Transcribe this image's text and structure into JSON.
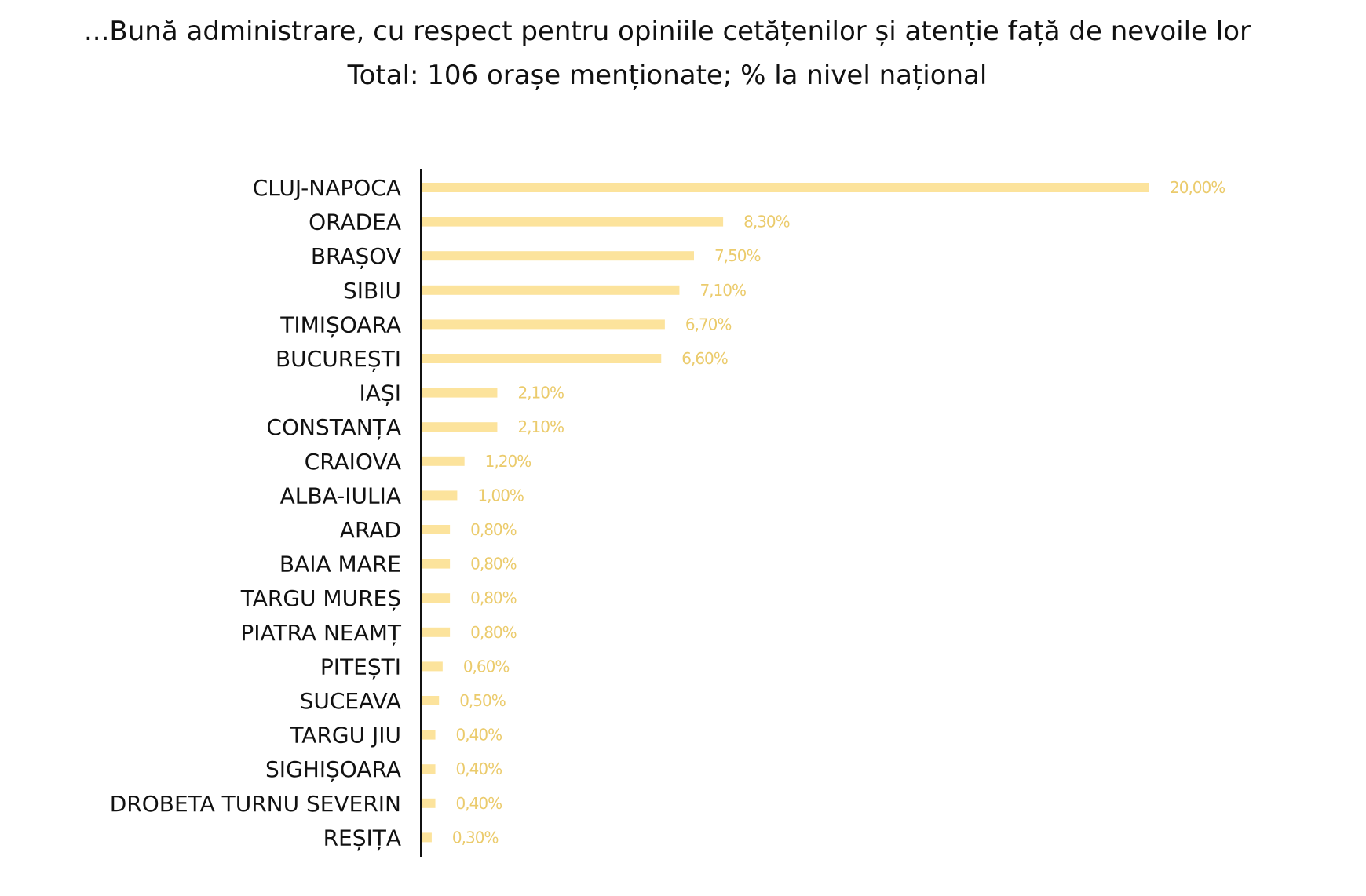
{
  "title": "...Bună administrare, cu respect pentru opiniile cetățenilor și atenție față de nevoile lor",
  "subtitle": "Total: 106 orașe menționate; % la nivel național",
  "colors": {
    "bar": "#FCE39C",
    "value_label": "#EBCB6C",
    "axis": "#111111",
    "text": "#111111"
  },
  "chart_data": {
    "type": "bar",
    "orientation": "horizontal",
    "title": "...Bună administrare, cu respect pentru opiniile cetățenilor și atenție față de nevoile lor",
    "subtitle": "Total: 106 orașe menționate; % la nivel național",
    "categories": [
      "CLUJ-NAPOCA",
      "ORADEA",
      "BRAȘOV",
      "SIBIU",
      "TIMIȘOARA",
      "BUCUREȘTI",
      "IAȘI",
      "CONSTANȚA",
      "CRAIOVA",
      "ALBA-IULIA",
      "ARAD",
      "BAIA MARE",
      "TARGU MUREȘ",
      "PIATRA NEAMȚ",
      "PITEȘTI",
      "SUCEAVA",
      "TARGU JIU",
      "SIGHIȘOARA",
      "DROBETA TURNU SEVERIN",
      "REȘIȚA"
    ],
    "values": [
      20.0,
      8.3,
      7.5,
      7.1,
      6.7,
      6.6,
      2.1,
      2.1,
      1.2,
      1.0,
      0.8,
      0.8,
      0.8,
      0.8,
      0.6,
      0.5,
      0.4,
      0.4,
      0.4,
      0.3
    ],
    "value_labels": [
      "20,00%",
      "8,30%",
      "7,50%",
      "7,10%",
      "6,70%",
      "6,60%",
      "2,10%",
      "2,10%",
      "1,20%",
      "1,00%",
      "0,80%",
      "0,80%",
      "0,80%",
      "0,80%",
      "0,60%",
      "0,50%",
      "0,40%",
      "0,40%",
      "0,40%",
      "0,30%"
    ],
    "xlim": [
      0,
      20
    ],
    "grid": false,
    "legend": "none"
  }
}
